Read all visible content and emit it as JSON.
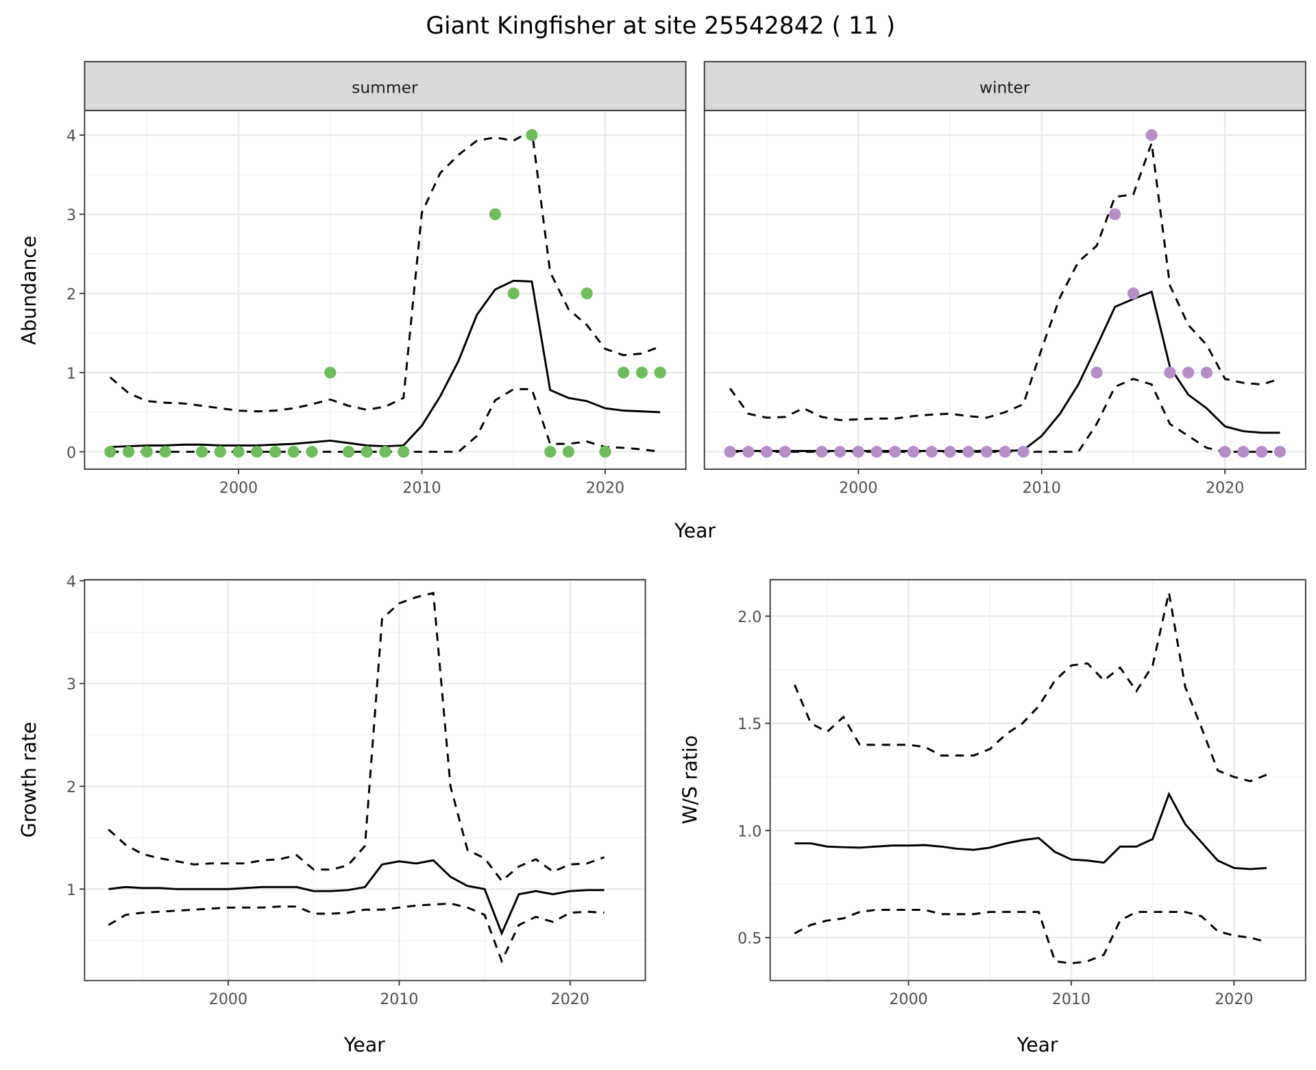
{
  "title": "Giant Kingfisher at site 25542842 ( 11 )",
  "colors": {
    "summer": "#6DBE5A",
    "winter": "#B58DC9",
    "line": "#000000",
    "strip": "#D9D9D9",
    "grid": "#EBEBEB"
  },
  "chart_data": [
    {
      "id": "summer",
      "type": "line",
      "strip_label": "summer",
      "ylabel": "Abundance",
      "xlabel": "Year",
      "xlim": [
        1991.6,
        2024.4
      ],
      "ylim": [
        -0.22,
        4.31
      ],
      "x_ticks": [
        2000,
        2010,
        2020
      ],
      "x_tick_labels": [
        "2000",
        "2010",
        "2020"
      ],
      "y_ticks": [
        0,
        1,
        2,
        3,
        4
      ],
      "y_tick_labels": [
        "0",
        "1",
        "2",
        "3",
        "4"
      ],
      "x": [
        1993,
        1994,
        1995,
        1996,
        1997,
        1998,
        1999,
        2000,
        2001,
        2002,
        2003,
        2004,
        2005,
        2006,
        2007,
        2008,
        2009,
        2010,
        2011,
        2012,
        2013,
        2014,
        2015,
        2016,
        2017,
        2018,
        2019,
        2020,
        2021,
        2022,
        2023
      ],
      "mean": [
        0.06,
        0.07,
        0.08,
        0.08,
        0.09,
        0.09,
        0.08,
        0.08,
        0.08,
        0.09,
        0.1,
        0.12,
        0.14,
        0.11,
        0.08,
        0.07,
        0.08,
        0.33,
        0.7,
        1.15,
        1.73,
        2.05,
        2.16,
        2.15,
        0.78,
        0.68,
        0.64,
        0.55,
        0.52,
        0.51,
        0.5
      ],
      "upper": [
        0.94,
        0.74,
        0.64,
        0.62,
        0.61,
        0.58,
        0.55,
        0.52,
        0.51,
        0.52,
        0.55,
        0.6,
        0.66,
        0.58,
        0.53,
        0.57,
        0.68,
        3.02,
        3.52,
        3.75,
        3.93,
        3.97,
        3.93,
        4.06,
        2.27,
        1.8,
        1.6,
        1.3,
        1.22,
        1.24,
        1.33
      ],
      "lower": [
        0,
        0,
        0,
        0,
        0,
        0,
        0,
        0,
        0,
        0,
        0,
        0,
        0,
        0,
        0,
        0,
        0,
        0,
        0,
        0,
        0.2,
        0.65,
        0.79,
        0.79,
        0.1,
        0.1,
        0.13,
        0.06,
        0.05,
        0.03,
        0.0
      ],
      "points": {
        "x": [
          1993,
          1994,
          1995,
          1996,
          1998,
          1999,
          2000,
          2001,
          2002,
          2003,
          2004,
          2005,
          2006,
          2007,
          2008,
          2009,
          2014,
          2015,
          2016,
          2017,
          2018,
          2019,
          2020,
          2021,
          2022,
          2023
        ],
        "y": [
          0,
          0,
          0,
          0,
          0,
          0,
          0,
          0,
          0,
          0,
          0,
          1,
          0,
          0,
          0,
          0,
          3,
          2,
          4,
          0,
          0,
          2,
          0,
          1,
          1,
          1
        ]
      }
    },
    {
      "id": "winter",
      "type": "line",
      "strip_label": "winter",
      "xlabel": "Year",
      "xlim": [
        1991.6,
        2024.4
      ],
      "ylim": [
        -0.22,
        4.31
      ],
      "x_ticks": [
        2000,
        2010,
        2020
      ],
      "x_tick_labels": [
        "2000",
        "2010",
        "2020"
      ],
      "y_ticks": [
        0,
        1,
        2,
        3,
        4
      ],
      "x": [
        1993,
        1994,
        1995,
        1996,
        1997,
        1998,
        1999,
        2000,
        2001,
        2002,
        2003,
        2004,
        2005,
        2006,
        2007,
        2008,
        2009,
        2010,
        2011,
        2012,
        2013,
        2014,
        2015,
        2016,
        2017,
        2018,
        2019,
        2020,
        2021,
        2022,
        2023
      ],
      "mean": [
        0.01,
        0.01,
        0.01,
        0.01,
        0.01,
        0.01,
        0.01,
        0.01,
        0.01,
        0.01,
        0.01,
        0.01,
        0.01,
        0.01,
        0.01,
        0.01,
        0.02,
        0.2,
        0.48,
        0.85,
        1.33,
        1.83,
        1.93,
        2.02,
        1.07,
        0.72,
        0.55,
        0.32,
        0.26,
        0.24,
        0.24
      ],
      "upper": [
        0.8,
        0.48,
        0.43,
        0.44,
        0.55,
        0.44,
        0.4,
        0.41,
        0.42,
        0.42,
        0.45,
        0.47,
        0.48,
        0.45,
        0.43,
        0.5,
        0.6,
        1.3,
        1.95,
        2.4,
        2.6,
        3.22,
        3.25,
        3.9,
        2.1,
        1.6,
        1.35,
        0.92,
        0.87,
        0.85,
        0.92
      ],
      "lower": [
        0,
        0,
        0,
        0,
        0,
        0,
        0,
        0,
        0,
        0,
        0,
        0,
        0,
        0,
        0,
        0,
        0,
        0,
        0,
        0,
        0.35,
        0.82,
        0.92,
        0.85,
        0.35,
        0.2,
        0.05,
        0,
        0,
        0,
        0
      ],
      "points": {
        "x": [
          1993,
          1994,
          1995,
          1996,
          1998,
          1999,
          2000,
          2001,
          2002,
          2003,
          2004,
          2005,
          2006,
          2007,
          2008,
          2009,
          2013,
          2014,
          2015,
          2016,
          2017,
          2018,
          2019,
          2020,
          2021,
          2022,
          2023
        ],
        "y": [
          0,
          0,
          0,
          0,
          0,
          0,
          0,
          0,
          0,
          0,
          0,
          0,
          0,
          0,
          0,
          0,
          1,
          3,
          2,
          4,
          1,
          1,
          1,
          0,
          0,
          0,
          0
        ]
      }
    },
    {
      "id": "growth",
      "type": "line",
      "ylabel": "Growth rate",
      "xlabel": "Year",
      "xlim": [
        1991.6,
        2024.4
      ],
      "ylim": [
        0.11,
        4.01
      ],
      "x_ticks": [
        2000,
        2010,
        2020
      ],
      "x_tick_labels": [
        "2000",
        "2010",
        "2020"
      ],
      "y_ticks": [
        1,
        2,
        3,
        4
      ],
      "y_tick_labels": [
        "1",
        "2",
        "3",
        "4"
      ],
      "x": [
        1993,
        1994,
        1995,
        1996,
        1997,
        1998,
        1999,
        2000,
        2001,
        2002,
        2003,
        2004,
        2005,
        2006,
        2007,
        2008,
        2009,
        2010,
        2011,
        2012,
        2013,
        2014,
        2015,
        2016,
        2017,
        2018,
        2019,
        2020,
        2021,
        2022
      ],
      "mean": [
        1.0,
        1.02,
        1.01,
        1.01,
        1.0,
        1.0,
        1.0,
        1.0,
        1.01,
        1.02,
        1.02,
        1.02,
        0.98,
        0.98,
        0.99,
        1.02,
        1.24,
        1.27,
        1.25,
        1.28,
        1.12,
        1.03,
        1.0,
        0.57,
        0.95,
        0.98,
        0.95,
        0.98,
        0.99,
        0.99
      ],
      "upper": [
        1.58,
        1.43,
        1.34,
        1.3,
        1.27,
        1.24,
        1.25,
        1.25,
        1.25,
        1.28,
        1.29,
        1.33,
        1.19,
        1.19,
        1.23,
        1.42,
        3.63,
        3.78,
        3.84,
        3.88,
        2.0,
        1.38,
        1.3,
        1.08,
        1.22,
        1.29,
        1.17,
        1.24,
        1.25,
        1.31
      ],
      "lower": [
        0.65,
        0.75,
        0.77,
        0.78,
        0.79,
        0.8,
        0.81,
        0.82,
        0.82,
        0.82,
        0.83,
        0.83,
        0.76,
        0.76,
        0.77,
        0.8,
        0.8,
        0.82,
        0.84,
        0.85,
        0.86,
        0.82,
        0.75,
        0.3,
        0.65,
        0.73,
        0.68,
        0.77,
        0.78,
        0.77
      ]
    },
    {
      "id": "ws_ratio",
      "type": "line",
      "ylabel": "W/S ratio",
      "xlabel": "Year",
      "xlim": [
        1991.5,
        2024.4
      ],
      "ylim": [
        0.3,
        2.17
      ],
      "x_ticks": [
        2000,
        2010,
        2020
      ],
      "x_tick_labels": [
        "2000",
        "2010",
        "2020"
      ],
      "y_ticks": [
        0.5,
        1.0,
        1.5,
        2.0
      ],
      "y_tick_labels": [
        "0.5",
        "1.0",
        "1.5",
        "2.0"
      ],
      "x": [
        1993,
        1994,
        1995,
        1996,
        1997,
        1998,
        1999,
        2000,
        2001,
        2002,
        2003,
        2004,
        2005,
        2006,
        2007,
        2008,
        2009,
        2010,
        2011,
        2012,
        2013,
        2014,
        2015,
        2016,
        2017,
        2018,
        2019,
        2020,
        2021,
        2022
      ],
      "mean": [
        0.94,
        0.94,
        0.925,
        0.922,
        0.92,
        0.925,
        0.93,
        0.93,
        0.932,
        0.925,
        0.915,
        0.91,
        0.92,
        0.94,
        0.955,
        0.965,
        0.9,
        0.865,
        0.86,
        0.85,
        0.925,
        0.925,
        0.96,
        1.17,
        1.03,
        0.945,
        0.86,
        0.825,
        0.82,
        0.825
      ],
      "upper": [
        1.68,
        1.5,
        1.46,
        1.53,
        1.4,
        1.4,
        1.4,
        1.4,
        1.39,
        1.35,
        1.35,
        1.35,
        1.38,
        1.45,
        1.5,
        1.58,
        1.7,
        1.77,
        1.78,
        1.7,
        1.76,
        1.65,
        1.77,
        2.11,
        1.67,
        1.48,
        1.28,
        1.25,
        1.23,
        1.26
      ],
      "lower": [
        0.52,
        0.56,
        0.58,
        0.59,
        0.62,
        0.63,
        0.63,
        0.63,
        0.63,
        0.61,
        0.61,
        0.61,
        0.62,
        0.62,
        0.62,
        0.62,
        0.39,
        0.38,
        0.39,
        0.42,
        0.58,
        0.62,
        0.62,
        0.62,
        0.62,
        0.6,
        0.53,
        0.51,
        0.5,
        0.48
      ]
    }
  ]
}
